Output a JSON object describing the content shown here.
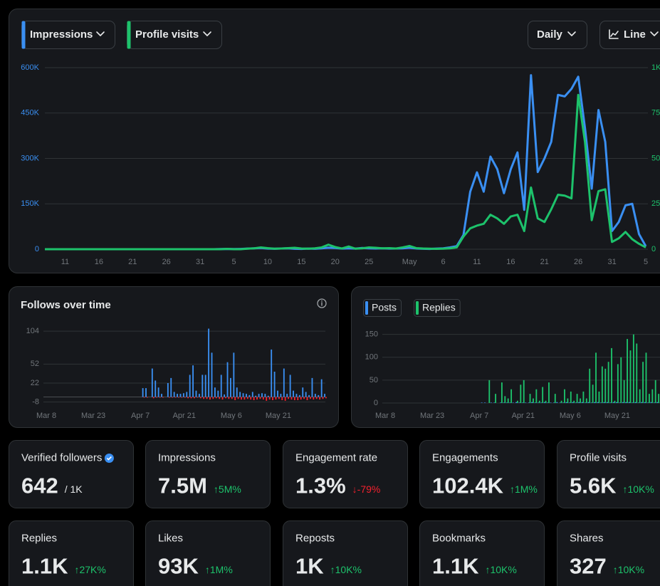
{
  "controls": {
    "metric_1": "Impressions",
    "metric_2": "Profile visits",
    "interval": "Daily",
    "chart_style": "Line"
  },
  "chart_data": [
    {
      "type": "line",
      "categories": [
        null,
        null,
        null,
        "11",
        null,
        null,
        null,
        null,
        "16",
        null,
        null,
        null,
        null,
        "21",
        null,
        null,
        null,
        null,
        "26",
        null,
        null,
        null,
        null,
        "31",
        null,
        null,
        null,
        null,
        "5",
        null,
        null,
        null,
        null,
        "10",
        null,
        null,
        null,
        null,
        "15",
        null,
        null,
        null,
        null,
        "20",
        null,
        null,
        null,
        null,
        "25",
        null,
        null,
        null,
        null,
        null,
        "May",
        null,
        null,
        null,
        null,
        "6",
        null,
        null,
        null,
        null,
        "11",
        null,
        null,
        null,
        null,
        "16",
        null,
        null,
        null,
        null,
        "21",
        null,
        null,
        null,
        null,
        "26",
        null,
        null,
        null,
        null,
        "31",
        null,
        null,
        null,
        null,
        "5"
      ],
      "series": [
        {
          "color": "#3a8ff2",
          "values": [
            0,
            0,
            0,
            0,
            0,
            0,
            0,
            0,
            0,
            0,
            0,
            0,
            0,
            0,
            0,
            0,
            0,
            0,
            0,
            0,
            0,
            0,
            0,
            0,
            0,
            0,
            500,
            1000,
            500,
            1000,
            2000,
            3000,
            4000,
            2000,
            1500,
            2500,
            3000,
            1500,
            1000,
            2000,
            1500,
            3000,
            5000,
            4000,
            2000,
            3000,
            2000,
            4000,
            3000,
            2500,
            3000,
            2000,
            2500,
            3000,
            5000,
            2500,
            1500,
            1000,
            2000,
            3000,
            6000,
            10000,
            47000,
            190000,
            254000,
            190000,
            306000,
            265000,
            185000,
            264000,
            320000,
            130000,
            575000,
            255000,
            300000,
            355000,
            510000,
            505000,
            530000,
            570000,
            400000,
            200000,
            460000,
            355000,
            60000,
            90000,
            145000,
            150000,
            50000,
            10000
          ]
        },
        {
          "color": "#1dc26b",
          "axis": "y2",
          "values": [
            0,
            0,
            0,
            0,
            0,
            0,
            0,
            0,
            0,
            0,
            0,
            0,
            0,
            0,
            0,
            0,
            0,
            0,
            0,
            0,
            0,
            0,
            0,
            0,
            0,
            0,
            0,
            2,
            0,
            0,
            3,
            5,
            10,
            6,
            3,
            4,
            6,
            8,
            4,
            3,
            5,
            10,
            25,
            12,
            4,
            15,
            3,
            5,
            10,
            8,
            5,
            6,
            4,
            10,
            18,
            6,
            4,
            3,
            2,
            3,
            5,
            10,
            70,
            115,
            130,
            140,
            190,
            170,
            140,
            180,
            190,
            100,
            340,
            170,
            150,
            220,
            300,
            295,
            280,
            850,
            590,
            160,
            320,
            330,
            40,
            60,
            95,
            55,
            30,
            10
          ]
        }
      ],
      "ylim": [
        0,
        600000
      ],
      "yticks": [
        0,
        {
          "value": 150000,
          "label": "150K"
        },
        {
          "value": 300000,
          "label": "300K"
        },
        {
          "value": 450000,
          "label": "450K"
        },
        {
          "value": 600000,
          "label": "600K"
        }
      ],
      "y2lim": [
        0,
        1000
      ],
      "y2ticks": [
        0,
        {
          "value": 250,
          "label": "25"
        },
        {
          "value": 500,
          "label": "50"
        },
        {
          "value": 750,
          "label": "75"
        },
        {
          "value": 1000,
          "label": "1K"
        }
      ],
      "grid": true
    },
    {
      "type": "bar",
      "title": "Follows over time",
      "categories": [
        "Mar 8",
        null,
        null,
        null,
        null,
        null,
        null,
        null,
        null,
        null,
        null,
        null,
        null,
        null,
        null,
        "Mar 23",
        null,
        null,
        null,
        null,
        null,
        null,
        null,
        null,
        null,
        null,
        null,
        null,
        null,
        null,
        "Apr 7",
        null,
        null,
        null,
        null,
        null,
        null,
        null,
        null,
        null,
        null,
        null,
        null,
        null,
        "Apr 21",
        null,
        null,
        null,
        null,
        null,
        null,
        null,
        null,
        null,
        null,
        null,
        null,
        null,
        null,
        "May 6",
        null,
        null,
        null,
        null,
        null,
        null,
        null,
        null,
        null,
        null,
        null,
        null,
        null,
        null,
        "May 21",
        null,
        null,
        null,
        null,
        null,
        null,
        null,
        null,
        null,
        null,
        null,
        null,
        null,
        null,
        null
      ],
      "series": [
        {
          "color": "#3a8ff2",
          "values": [
            0,
            0,
            0,
            0,
            0,
            0,
            0,
            0,
            0,
            0,
            0,
            0,
            0,
            0,
            0,
            0,
            0,
            0,
            0,
            0,
            0,
            0,
            0,
            0,
            0,
            0,
            0,
            0,
            0,
            0,
            0,
            14,
            14,
            0,
            45,
            26,
            15,
            5,
            0,
            22,
            30,
            8,
            5,
            5,
            6,
            8,
            35,
            50,
            10,
            5,
            35,
            35,
            108,
            70,
            15,
            10,
            35,
            4,
            55,
            30,
            70,
            15,
            8,
            6,
            5,
            3,
            8,
            2,
            5,
            6,
            5,
            2,
            75,
            40,
            10,
            5,
            45,
            5,
            35,
            10,
            5,
            3,
            15,
            8,
            3,
            30,
            5,
            3,
            28,
            5
          ]
        },
        {
          "color": "#f4212e",
          "values": [
            0,
            0,
            0,
            0,
            0,
            0,
            0,
            0,
            0,
            0,
            0,
            0,
            0,
            0,
            0,
            0,
            0,
            0,
            0,
            0,
            0,
            0,
            0,
            0,
            0,
            0,
            0,
            0,
            0,
            0,
            0,
            -1,
            -1,
            0,
            -2,
            -1,
            -1,
            -1,
            0,
            -1,
            -1,
            -1,
            -1,
            -1,
            -1,
            -2,
            -2,
            -2,
            -1,
            -2,
            -3,
            -3,
            -4,
            -3,
            -2,
            -3,
            -4,
            -2,
            -3,
            -3,
            -5,
            -3,
            -4,
            -4,
            -3,
            -4,
            -5,
            -4,
            -3,
            -4,
            -6,
            -4,
            -5,
            -4,
            -3,
            -5,
            -6,
            -3,
            -4,
            -5,
            -5,
            -4,
            -3,
            -5,
            -3,
            -4,
            -3,
            -4,
            -3,
            -2
          ]
        }
      ],
      "ylim": [
        -14,
        112
      ],
      "yticks": [
        104,
        52,
        22,
        -8
      ],
      "grid": true
    },
    {
      "type": "bar",
      "categories": [
        "Mar 8",
        null,
        null,
        null,
        null,
        null,
        null,
        null,
        null,
        null,
        null,
        null,
        null,
        null,
        null,
        "Mar 23",
        null,
        null,
        null,
        null,
        null,
        null,
        null,
        null,
        null,
        null,
        null,
        null,
        null,
        null,
        "Apr 7",
        null,
        null,
        null,
        null,
        null,
        null,
        null,
        null,
        null,
        null,
        null,
        null,
        null,
        "Apr 21",
        null,
        null,
        null,
        null,
        null,
        null,
        null,
        null,
        null,
        null,
        null,
        null,
        null,
        null,
        "May 6",
        null,
        null,
        null,
        null,
        null,
        null,
        null,
        null,
        null,
        null,
        null,
        null,
        null,
        null,
        "May 21",
        null,
        null,
        null,
        null,
        null,
        null,
        null,
        null,
        null,
        null,
        null,
        null,
        null,
        null,
        null
      ],
      "series": [
        {
          "name": "Posts",
          "color": "#3a8ff2",
          "values": [
            0,
            0,
            0,
            0,
            0,
            0,
            0,
            0,
            0,
            0,
            0,
            0,
            0,
            0,
            0,
            0,
            0,
            0,
            0,
            0,
            0,
            0,
            0,
            0,
            0,
            0,
            0,
            0,
            0,
            0,
            0,
            1,
            1,
            0,
            1,
            1,
            0,
            1,
            1,
            1,
            1,
            1,
            2,
            1,
            1,
            1,
            1,
            2,
            1,
            1,
            1,
            2,
            1,
            1,
            1,
            2,
            1,
            1,
            2,
            1,
            2,
            1,
            2,
            2,
            1,
            2,
            1,
            2,
            2,
            1,
            2,
            2,
            1,
            2,
            2,
            1,
            2,
            2,
            2,
            1,
            2,
            1,
            2,
            2,
            1,
            2,
            1,
            2,
            1,
            2
          ]
        },
        {
          "name": "Replies",
          "color": "#1dc26b",
          "values": [
            0,
            0,
            0,
            0,
            0,
            0,
            0,
            0,
            0,
            0,
            0,
            0,
            0,
            0,
            0,
            0,
            0,
            0,
            0,
            0,
            0,
            0,
            0,
            0,
            0,
            0,
            0,
            0,
            0,
            0,
            0,
            0,
            0,
            50,
            0,
            20,
            0,
            45,
            15,
            10,
            30,
            0,
            5,
            40,
            50,
            0,
            20,
            10,
            30,
            5,
            35,
            5,
            45,
            0,
            20,
            0,
            5,
            30,
            10,
            25,
            5,
            20,
            10,
            25,
            10,
            75,
            40,
            110,
            25,
            80,
            75,
            90,
            120,
            5,
            85,
            100,
            50,
            140,
            115,
            150,
            130,
            30,
            90,
            110,
            20,
            30,
            50,
            20,
            60,
            80
          ]
        }
      ],
      "ylim": [
        0,
        165
      ],
      "yticks": [
        0,
        50,
        100,
        150
      ],
      "grid": true
    }
  ],
  "metrics": [
    {
      "label": "Verified followers",
      "value": "642",
      "suffix": "/ 1K",
      "verified": true
    },
    {
      "label": "Impressions",
      "value": "7.5M",
      "change": "↑5M%",
      "change_color": "#1dc26b"
    },
    {
      "label": "Engagement rate",
      "value": "1.3%",
      "change": "↓-79%",
      "change_color": "#f4212e"
    },
    {
      "label": "Engagements",
      "value": "102.4K",
      "change": "↑1M%",
      "change_color": "#1dc26b"
    },
    {
      "label": "Profile visits",
      "value": "5.6K",
      "change": "↑10K%",
      "change_color": "#1dc26b"
    },
    {
      "label": "Replies",
      "value": "1.1K",
      "change": "↑27K%",
      "change_color": "#1dc26b"
    },
    {
      "label": "Likes",
      "value": "93K",
      "change": "↑1M%",
      "change_color": "#1dc26b"
    },
    {
      "label": "Reposts",
      "value": "1K",
      "change": "↑10K%",
      "change_color": "#1dc26b"
    },
    {
      "label": "Bookmarks",
      "value": "1.1K",
      "change": "↑10K%",
      "change_color": "#1dc26b"
    },
    {
      "label": "Shares",
      "value": "327",
      "change": "↑10K%",
      "change_color": "#1dc26b"
    }
  ]
}
